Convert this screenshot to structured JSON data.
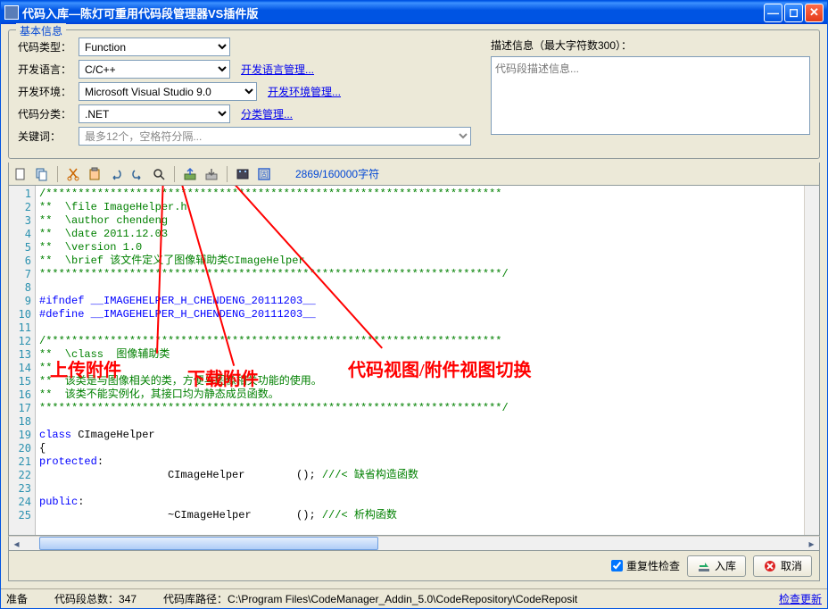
{
  "window": {
    "title": "代码入库—陈灯可重用代码段管理器VS插件版"
  },
  "group": {
    "title": "基本信息"
  },
  "form": {
    "code_type_label": "代码类型：",
    "code_type_value": "Function",
    "dev_lang_label": "开发语言：",
    "dev_lang_value": "C/C++",
    "dev_lang_link": "开发语言管理...",
    "dev_env_label": "开发环境：",
    "dev_env_value": "Microsoft Visual Studio 9.0",
    "dev_env_link": "开发环境管理...",
    "category_label": "代码分类：",
    "category_value": ".NET",
    "category_link": "分类管理...",
    "keyword_label": "关键词：",
    "keyword_value": "最多12个，空格符分隔...",
    "desc_label": "描述信息（最大字符数300）：",
    "desc_placeholder": "代码段描述信息..."
  },
  "toolbar": {
    "char_count": "2869/160000字符"
  },
  "code_lines": [
    {
      "n": 1,
      "cls": "c-comment",
      "t": "/***********************************************************************"
    },
    {
      "n": 2,
      "cls": "c-comment",
      "t": "**  \\file ImageHelper.h"
    },
    {
      "n": 3,
      "cls": "c-comment",
      "t": "**  \\author chendeng"
    },
    {
      "n": 4,
      "cls": "c-comment",
      "t": "**  \\date 2011.12.03"
    },
    {
      "n": 5,
      "cls": "c-comment",
      "t": "**  \\version 1.0"
    },
    {
      "n": 6,
      "cls": "c-comment",
      "t": "**  \\brief 该文件定义了图像辅助类CImageHelper"
    },
    {
      "n": 7,
      "cls": "c-comment",
      "t": "************************************************************************/"
    },
    {
      "n": 8,
      "cls": "",
      "t": ""
    },
    {
      "n": 9,
      "cls": "c-pp",
      "t": "#ifndef __IMAGEHELPER_H_CHENDENG_20111203__"
    },
    {
      "n": 10,
      "cls": "c-pp",
      "t": "#define __IMAGEHELPER_H_CHENDENG_20111203__"
    },
    {
      "n": 11,
      "cls": "",
      "t": ""
    },
    {
      "n": 12,
      "cls": "c-comment",
      "t": "/***********************************************************************"
    },
    {
      "n": 13,
      "cls": "c-comment",
      "t": "**  \\class  图像辅助类"
    },
    {
      "n": 14,
      "cls": "c-comment",
      "t": "**"
    },
    {
      "n": 15,
      "cls": "c-comment",
      "t": "**  该类是与图像相关的类，方便与图像相关功能的使用。"
    },
    {
      "n": 16,
      "cls": "c-comment",
      "t": "**  该类不能实例化，其接口均为静态成员函数。"
    },
    {
      "n": 17,
      "cls": "c-comment",
      "t": "************************************************************************/"
    },
    {
      "n": 18,
      "cls": "",
      "t": ""
    },
    {
      "n": 19,
      "cls": "",
      "t": "<span class=\"c-kw\">class</span> CImageHelper"
    },
    {
      "n": 20,
      "cls": "",
      "t": "{"
    },
    {
      "n": 21,
      "cls": "",
      "t": "<span class=\"c-kw\">protected</span>:"
    },
    {
      "n": 22,
      "cls": "",
      "t": "                    CImageHelper        (); <span class=\"c-doc\">///&lt; 缺省构造函数</span>"
    },
    {
      "n": 23,
      "cls": "",
      "t": ""
    },
    {
      "n": 24,
      "cls": "",
      "t": "<span class=\"c-kw\">public</span>:"
    },
    {
      "n": 25,
      "cls": "",
      "t": "                    ~CImageHelper       (); <span class=\"c-doc\">///&lt; 析构函数</span>"
    }
  ],
  "bottom": {
    "repeat_check": "重复性检查",
    "submit": "入库",
    "cancel": "取消"
  },
  "status": {
    "ready": "准备",
    "total": "代码段总数：347",
    "path": "代码库路径：C:\\Program Files\\CodeManager_Addin_5.0\\CodeRepository\\CodeReposit",
    "update": "检查更新"
  },
  "annotations": {
    "upload": "上传附件",
    "download": "下载附件",
    "toggle": "代码视图/附件视图切换"
  },
  "colors": {
    "titlebar": "#0054e3",
    "bg": "#ece9d8",
    "border": "#919b9c",
    "link": "#0000ee",
    "comment": "#008000",
    "keyword": "#0000ff",
    "annotation": "#ff0000"
  }
}
